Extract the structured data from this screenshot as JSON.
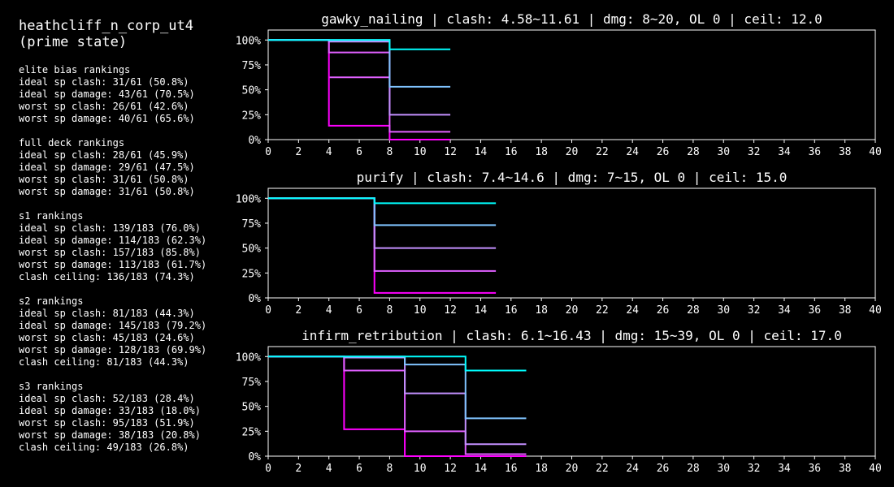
{
  "sidebar": {
    "title": "heathcliff_n_corp_ut4\n(prime state)",
    "sections": [
      {
        "heading": "elite bias rankings",
        "lines": [
          "ideal sp clash: 31/61 (50.8%)",
          "ideal sp damage: 43/61 (70.5%)",
          "worst sp clash: 26/61 (42.6%)",
          "worst sp damage: 40/61 (65.6%)"
        ]
      },
      {
        "heading": "full deck rankings",
        "lines": [
          "ideal sp clash: 28/61 (45.9%)",
          "ideal sp damage: 29/61 (47.5%)",
          "worst sp clash: 31/61 (50.8%)",
          "worst sp damage: 31/61 (50.8%)"
        ]
      },
      {
        "heading": "s1 rankings",
        "lines": [
          "ideal sp clash: 139/183 (76.0%)",
          "ideal sp damage: 114/183 (62.3%)",
          "worst sp clash: 157/183 (85.8%)",
          "worst sp damage: 113/183 (61.7%)",
          "clash ceiling: 136/183 (74.3%)"
        ]
      },
      {
        "heading": "s2 rankings",
        "lines": [
          "ideal sp clash: 81/183 (44.3%)",
          "ideal sp damage: 145/183 (79.2%)",
          "worst sp clash: 45/183 (24.6%)",
          "worst sp damage: 128/183 (69.9%)",
          "clash ceiling: 81/183 (44.3%)"
        ]
      },
      {
        "heading": "s3 rankings",
        "lines": [
          "ideal sp clash: 52/183 (28.4%)",
          "ideal sp damage: 33/183 (18.0%)",
          "worst sp clash: 95/183 (51.9%)",
          "worst sp damage: 38/183 (20.8%)",
          "clash ceiling: 49/183 (26.8%)"
        ]
      }
    ]
  },
  "chart_data": [
    {
      "type": "line",
      "title": "gawky_nailing | clash: 4.58~11.61 | dmg: 8~20, OL 0 | ceil: 12.0",
      "xlim": [
        0,
        40
      ],
      "ylim": [
        0,
        1.1
      ],
      "xticks": [
        0,
        2,
        4,
        6,
        8,
        10,
        12,
        14,
        16,
        18,
        20,
        22,
        24,
        26,
        28,
        30,
        32,
        34,
        36,
        38,
        40
      ],
      "yticks": [
        0,
        0.25,
        0.5,
        0.75,
        1
      ],
      "ytick_labels": [
        "0%",
        "25%",
        "50%",
        "75%",
        "100%"
      ],
      "grid": false,
      "series": [
        {
          "color": "#00ffff",
          "steps": [
            [
              0,
              1
            ],
            [
              8,
              0.906
            ],
            [
              12,
              0.906
            ]
          ]
        },
        {
          "color": "#80c4ff",
          "steps": [
            [
              0,
              1
            ],
            [
              8,
              0.531
            ],
            [
              12,
              0.531
            ]
          ]
        },
        {
          "color": "#c490ff",
          "steps": [
            [
              0,
              1
            ],
            [
              4,
              0.984
            ],
            [
              8,
              0.25
            ],
            [
              12,
              0.25
            ]
          ]
        },
        {
          "color": "#e060ff",
          "steps": [
            [
              0,
              1
            ],
            [
              4,
              0.875
            ],
            [
              8,
              0.078
            ],
            [
              12,
              0.078
            ]
          ]
        },
        {
          "color": "#ff00ff",
          "steps": [
            [
              0,
              1
            ],
            [
              4,
              0.14
            ],
            [
              8,
              0.0
            ],
            [
              12,
              0.0
            ]
          ]
        }
      ],
      "extra_levels": [
        {
          "color": "#e060ff",
          "steps": [
            [
              4,
              0.625
            ],
            [
              8,
              0.625
            ]
          ]
        }
      ]
    },
    {
      "type": "line",
      "title": "purify | clash: 7.4~14.6 | dmg: 7~15, OL 0 | ceil: 15.0",
      "xlim": [
        0,
        40
      ],
      "ylim": [
        0,
        1.1
      ],
      "xticks": [
        0,
        2,
        4,
        6,
        8,
        10,
        12,
        14,
        16,
        18,
        20,
        22,
        24,
        26,
        28,
        30,
        32,
        34,
        36,
        38,
        40
      ],
      "yticks": [
        0,
        0.25,
        0.5,
        0.75,
        1
      ],
      "ytick_labels": [
        "0%",
        "25%",
        "50%",
        "75%",
        "100%"
      ],
      "grid": false,
      "series": [
        {
          "color": "#00ffff",
          "steps": [
            [
              0,
              1
            ],
            [
              7,
              0.95
            ],
            [
              15,
              0.95
            ]
          ]
        },
        {
          "color": "#80c4ff",
          "steps": [
            [
              0,
              1
            ],
            [
              7,
              0.73
            ],
            [
              15,
              0.73
            ]
          ]
        },
        {
          "color": "#c490ff",
          "steps": [
            [
              0,
              1
            ],
            [
              7,
              0.5
            ],
            [
              15,
              0.5
            ]
          ]
        },
        {
          "color": "#e060ff",
          "steps": [
            [
              0,
              1
            ],
            [
              7,
              0.27
            ],
            [
              15,
              0.27
            ]
          ]
        },
        {
          "color": "#ff00ff",
          "steps": [
            [
              0,
              1
            ],
            [
              7,
              0.05
            ],
            [
              15,
              0.05
            ]
          ]
        }
      ],
      "extra_levels": []
    },
    {
      "type": "line",
      "title": "infirm_retribution | clash: 6.1~16.43 | dmg: 15~39, OL 0 | ceil: 17.0",
      "xlim": [
        0,
        40
      ],
      "ylim": [
        0,
        1.1
      ],
      "xticks": [
        0,
        2,
        4,
        6,
        8,
        10,
        12,
        14,
        16,
        18,
        20,
        22,
        24,
        26,
        28,
        30,
        32,
        34,
        36,
        38,
        40
      ],
      "yticks": [
        0,
        0.25,
        0.5,
        0.75,
        1
      ],
      "ytick_labels": [
        "0%",
        "25%",
        "50%",
        "75%",
        "100%"
      ],
      "grid": false,
      "series": [
        {
          "color": "#00ffff",
          "steps": [
            [
              0,
              1
            ],
            [
              13,
              0.86
            ],
            [
              17,
              0.86
            ]
          ]
        },
        {
          "color": "#80c4ff",
          "steps": [
            [
              0,
              1
            ],
            [
              9,
              0.92
            ],
            [
              13,
              0.38
            ],
            [
              17,
              0.38
            ]
          ]
        },
        {
          "color": "#c490ff",
          "steps": [
            [
              0,
              1
            ],
            [
              5,
              0.99
            ],
            [
              9,
              0.63
            ],
            [
              13,
              0.12
            ],
            [
              17,
              0.12
            ]
          ]
        },
        {
          "color": "#e060ff",
          "steps": [
            [
              0,
              1
            ],
            [
              5,
              0.86
            ],
            [
              9,
              0.25
            ],
            [
              13,
              0.02
            ],
            [
              17,
              0.02
            ]
          ]
        },
        {
          "color": "#ff00ff",
          "steps": [
            [
              0,
              1
            ],
            [
              5,
              0.27
            ],
            [
              9,
              0.0
            ],
            [
              17,
              0.0
            ]
          ]
        }
      ],
      "extra_levels": []
    }
  ]
}
